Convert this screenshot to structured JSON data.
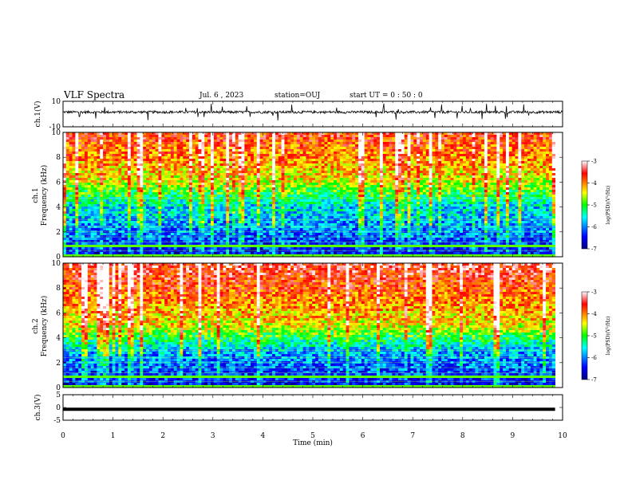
{
  "header": {
    "title": "VLF Spectra",
    "date": "Jul. 6 , 2023",
    "station": "station=OUJ",
    "start": "start UT = 0 : 50 : 0"
  },
  "colors": {
    "low": "#00007f",
    "mid": "#00ff00",
    "high": "#ff0000",
    "trace": "#000000"
  },
  "chart_data": [
    {
      "type": "line",
      "name": "ch1-waveform",
      "ylabel": "ch.1(V)",
      "ylim": [
        -10,
        10
      ],
      "yticks": [
        10,
        -10
      ],
      "xlim": [
        0,
        10
      ],
      "baseline": 1.5,
      "noise_amplitude": 1.0,
      "spike_amplitude": 6
    },
    {
      "type": "heatmap",
      "name": "ch1-spectrogram",
      "ylabel": "ch.1 Frequency (kHz)",
      "ylim": [
        0,
        10
      ],
      "yticks": [
        0,
        2,
        4,
        6,
        8,
        10
      ],
      "xlim": [
        0,
        9.85
      ],
      "colorbar": {
        "label": "log(PSD)(V²/Hz)",
        "range": [
          -7,
          -3
        ],
        "ticks": [
          -3,
          -4,
          -5,
          -6,
          -7
        ]
      },
      "description": "log PSD rises with frequency: low values (-7 to -6) below 4 kHz, high values (-4 to -3) above 6 kHz"
    },
    {
      "type": "heatmap",
      "name": "ch2-spectrogram",
      "ylabel": "ch.2 Frequency (kHz)",
      "ylim": [
        0,
        10
      ],
      "yticks": [
        0,
        2,
        4,
        6,
        8,
        10
      ],
      "xlim": [
        0,
        9.85
      ],
      "colorbar": {
        "label": "log(PSD)(V²/Hz)",
        "range": [
          -7,
          -3
        ],
        "ticks": [
          -3,
          -4,
          -5,
          -6,
          -7
        ]
      },
      "description": "log PSD rises with frequency: low values below 3 kHz, high values (-4 to -3) above 5 kHz"
    },
    {
      "type": "line",
      "name": "ch3-waveform",
      "ylabel": "ch.3(V)",
      "ylim": [
        -5,
        5
      ],
      "yticks": [
        5,
        0,
        -5
      ],
      "xlim": [
        0,
        9.85
      ],
      "values_constant": -0.7
    }
  ],
  "xaxis": {
    "label": "Time (min)",
    "range": [
      0,
      10
    ],
    "ticks": [
      "0",
      "1",
      "2",
      "3",
      "4",
      "5",
      "6",
      "7",
      "8",
      "9",
      "10"
    ]
  },
  "axis_labels": {
    "ch1_wave": "ch.1(V)",
    "ch1_spec_a": "ch.1",
    "ch1_spec_b": "Frequency (kHz)",
    "ch2_spec_a": "ch.2",
    "ch2_spec_b": "Frequency (kHz)",
    "ch3_wave": "ch.3(V)",
    "cbar1": "log(PSD)(V²/Hz)",
    "cbar2": "log(PSD)(V²/Hz)"
  }
}
